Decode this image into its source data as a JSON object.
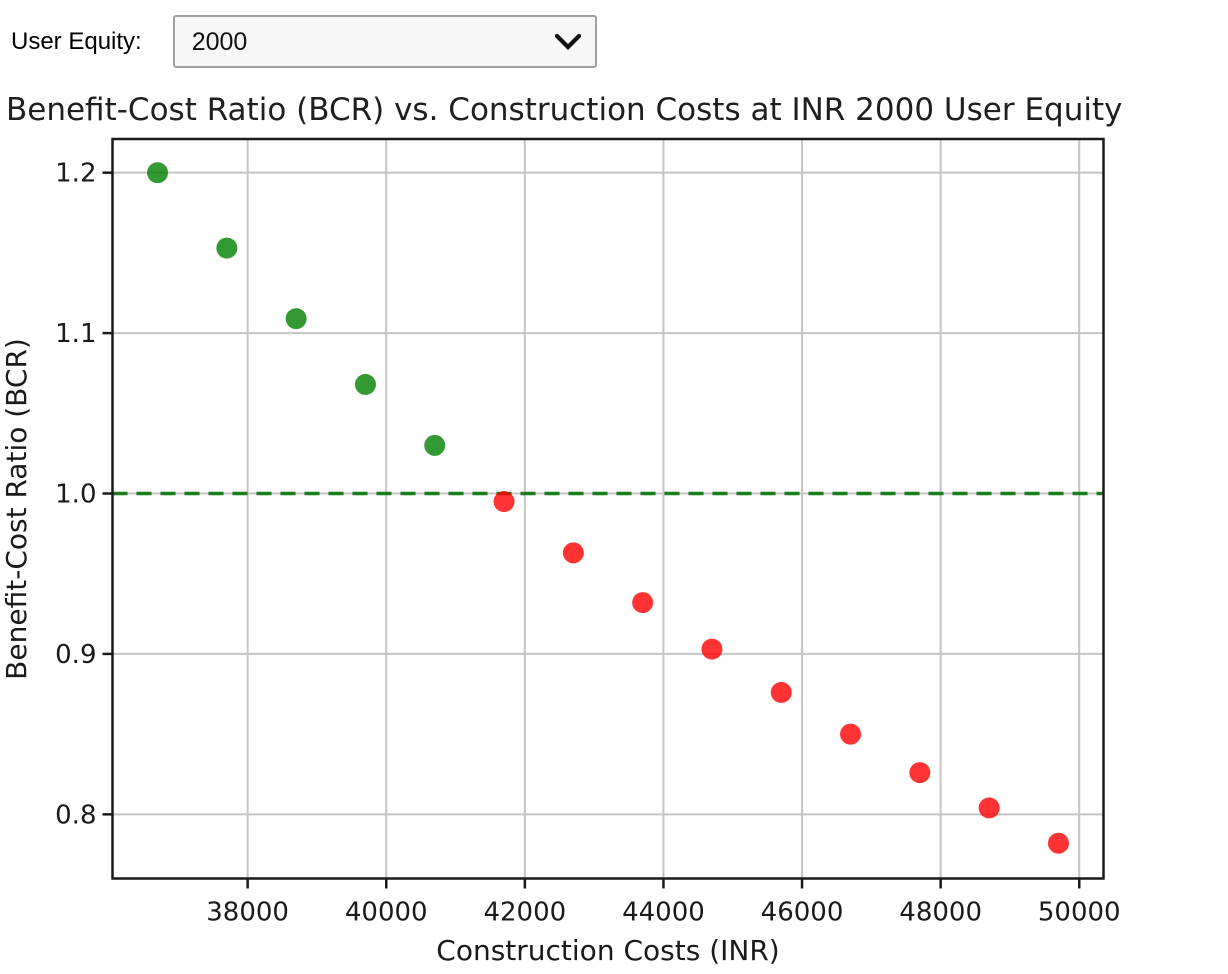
{
  "controls": {
    "user_equity_label": "User Equity:",
    "user_equity_value": "2000",
    "options": [
      "2000"
    ]
  },
  "chart_data": {
    "type": "scatter",
    "title": "Benefit-Cost Ratio (BCR) vs. Construction Costs at INR 2000 User Equity",
    "xlabel": "Construction Costs (INR)",
    "ylabel": "Benefit-Cost Ratio (BCR)",
    "x": [
      36700,
      37700,
      38700,
      39700,
      40700,
      41700,
      42700,
      43700,
      44700,
      45700,
      46700,
      47700,
      48700,
      49700
    ],
    "y": [
      1.2,
      1.153,
      1.109,
      1.068,
      1.03,
      0.995,
      0.963,
      0.932,
      0.903,
      0.876,
      0.85,
      0.826,
      0.804,
      0.782
    ],
    "point_rule": "green if BCR >= 1.0 else red",
    "threshold": {
      "y": 1.0,
      "style": "dashed"
    },
    "xlim": [
      36050,
      50350
    ],
    "ylim": [
      0.76,
      1.221
    ],
    "x_ticks": [
      38000,
      40000,
      42000,
      44000,
      46000,
      48000,
      50000
    ],
    "y_ticks": [
      0.8,
      0.9,
      1.0,
      1.1,
      1.2
    ],
    "grid": true,
    "legend": "none",
    "colors": {
      "point_above": "#008000",
      "point_below": "#ff0000",
      "point_alpha": 0.8,
      "threshold": "#1e7d1e",
      "grid": "#c4c4c4",
      "frame": "#1a1a1a",
      "text": "#1a1a1a",
      "title_text": "#1f1f1f"
    }
  }
}
